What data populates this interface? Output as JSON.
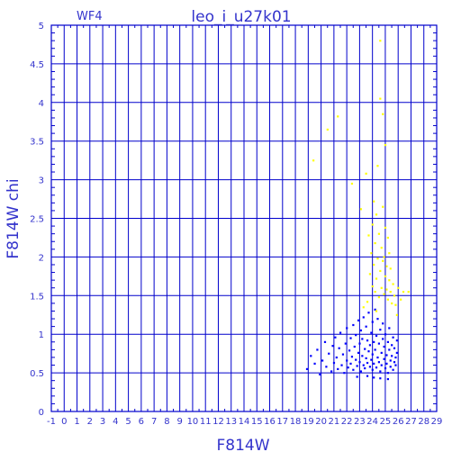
{
  "chart_data": {
    "type": "scatter",
    "title": "leo_i_u27k01",
    "subtitle": "WF4",
    "xlabel": "F814W",
    "ylabel": "F814W chi",
    "xlim": [
      -1,
      29
    ],
    "ylim": [
      0,
      5
    ],
    "x_ticks": [
      -1,
      0,
      1,
      2,
      3,
      4,
      5,
      6,
      7,
      8,
      9,
      10,
      11,
      12,
      13,
      14,
      15,
      16,
      17,
      18,
      19,
      20,
      21,
      22,
      23,
      24,
      25,
      26,
      27,
      28,
      29
    ],
    "x_tick_labels": [
      "-1",
      "0",
      "1",
      "2",
      "3",
      "4",
      "5",
      "6",
      "7",
      "8",
      "9",
      "10",
      "11",
      "12",
      "13",
      "14",
      "15",
      "16",
      "17",
      "18",
      "19",
      "20",
      "21",
      "22",
      "23",
      "24",
      "25",
      "26",
      "27",
      "28",
      "29"
    ],
    "y_ticks": [
      0,
      0.5,
      1,
      1.5,
      2,
      2.5,
      3,
      3.5,
      4,
      4.5,
      5
    ],
    "y_tick_labels": [
      "0",
      "0.5",
      "1",
      "1.5",
      "2",
      "2.5",
      "3",
      "3.5",
      "4",
      "4.5",
      "5"
    ],
    "grid": true,
    "colors": {
      "axis": "#0000cc",
      "text": "#3333cc",
      "series_blue": "#0000ff",
      "series_yellow": "#ffff00"
    },
    "series": [
      {
        "color": "#0000ff",
        "points": [
          [
            18.9,
            0.55
          ],
          [
            19.2,
            0.72
          ],
          [
            19.5,
            0.62
          ],
          [
            19.7,
            0.8
          ],
          [
            19.9,
            0.48
          ],
          [
            20.1,
            0.66
          ],
          [
            20.3,
            0.9
          ],
          [
            20.4,
            0.58
          ],
          [
            20.6,
            0.75
          ],
          [
            20.8,
            0.52
          ],
          [
            20.9,
            0.85
          ],
          [
            21.0,
            0.63
          ],
          [
            21.1,
            0.96
          ],
          [
            21.2,
            0.7
          ],
          [
            21.3,
            0.55
          ],
          [
            21.4,
            0.82
          ],
          [
            21.5,
            1.02
          ],
          [
            21.6,
            0.6
          ],
          [
            21.7,
            0.74
          ],
          [
            21.8,
            0.5
          ],
          [
            21.9,
            0.88
          ],
          [
            22.0,
            0.66
          ],
          [
            22.0,
            1.08
          ],
          [
            22.1,
            0.57
          ],
          [
            22.2,
            0.79
          ],
          [
            22.3,
            0.95
          ],
          [
            22.3,
            0.62
          ],
          [
            22.4,
            0.71
          ],
          [
            22.5,
            1.12
          ],
          [
            22.5,
            0.54
          ],
          [
            22.6,
            0.84
          ],
          [
            22.7,
            0.67
          ],
          [
            22.7,
            0.99
          ],
          [
            22.8,
            0.59
          ],
          [
            22.9,
            0.76
          ],
          [
            22.9,
            1.18
          ],
          [
            23.0,
            0.64
          ],
          [
            23.0,
            0.88
          ],
          [
            23.1,
            0.52
          ],
          [
            23.1,
            1.05
          ],
          [
            23.2,
            0.72
          ],
          [
            23.2,
            0.94
          ],
          [
            23.3,
            0.6
          ],
          [
            23.3,
            1.22
          ],
          [
            23.4,
            0.81
          ],
          [
            23.4,
            0.56
          ],
          [
            23.5,
            0.69
          ],
          [
            23.5,
            1.1
          ],
          [
            23.6,
            0.92
          ],
          [
            23.6,
            0.63
          ],
          [
            23.7,
            0.78
          ],
          [
            23.7,
            1.28
          ],
          [
            23.8,
            0.58
          ],
          [
            23.8,
            0.86
          ],
          [
            23.9,
            1.02
          ],
          [
            23.9,
            0.67
          ],
          [
            24.0,
            0.74
          ],
          [
            24.0,
            1.16
          ],
          [
            24.0,
            0.54
          ],
          [
            24.1,
            0.9
          ],
          [
            24.1,
            0.62
          ],
          [
            24.2,
            1.32
          ],
          [
            24.2,
            0.8
          ],
          [
            24.3,
            0.57
          ],
          [
            24.3,
            0.98
          ],
          [
            24.4,
            0.7
          ],
          [
            24.4,
            1.2
          ],
          [
            24.5,
            0.64
          ],
          [
            24.5,
            0.88
          ],
          [
            24.6,
            0.52
          ],
          [
            24.6,
            1.06
          ],
          [
            24.7,
            0.76
          ],
          [
            24.7,
            0.6
          ],
          [
            24.8,
            0.94
          ],
          [
            24.8,
            1.14
          ],
          [
            24.9,
            0.68
          ],
          [
            24.9,
            0.84
          ],
          [
            25.0,
            0.56
          ],
          [
            25.0,
            1.0
          ],
          [
            25.1,
            0.73
          ],
          [
            25.1,
            0.62
          ],
          [
            25.2,
            0.9
          ],
          [
            25.2,
            0.5
          ],
          [
            25.3,
            0.8
          ],
          [
            25.3,
            1.08
          ],
          [
            25.4,
            0.66
          ],
          [
            25.4,
            0.58
          ],
          [
            25.5,
            0.86
          ],
          [
            25.5,
            0.72
          ],
          [
            25.6,
            0.96
          ],
          [
            25.6,
            0.54
          ],
          [
            25.7,
            0.64
          ],
          [
            25.7,
            0.82
          ],
          [
            25.8,
            0.7
          ],
          [
            25.8,
            0.6
          ],
          [
            25.9,
            0.92
          ],
          [
            25.9,
            0.76
          ],
          [
            24.1,
            0.44
          ],
          [
            23.6,
            0.46
          ],
          [
            22.8,
            0.45
          ],
          [
            24.6,
            0.43
          ],
          [
            25.2,
            0.42
          ]
        ]
      },
      {
        "color": "#ffff00",
        "points": [
          [
            19.4,
            3.25
          ],
          [
            20.5,
            3.65
          ],
          [
            21.3,
            3.82
          ],
          [
            22.4,
            2.95
          ],
          [
            23.1,
            2.62
          ],
          [
            23.5,
            3.08
          ],
          [
            23.7,
            2.28
          ],
          [
            23.8,
            1.78
          ],
          [
            23.9,
            2.05
          ],
          [
            24.0,
            1.62
          ],
          [
            24.0,
            2.42
          ],
          [
            24.1,
            1.9
          ],
          [
            24.1,
            2.72
          ],
          [
            24.2,
            1.55
          ],
          [
            24.2,
            2.18
          ],
          [
            24.3,
            1.72
          ],
          [
            24.3,
            2.55
          ],
          [
            24.4,
            1.98
          ],
          [
            24.4,
            3.18
          ],
          [
            24.5,
            1.48
          ],
          [
            24.5,
            2.3
          ],
          [
            24.6,
            1.82
          ],
          [
            24.6,
            4.05
          ],
          [
            24.7,
            1.6
          ],
          [
            24.7,
            2.12
          ],
          [
            24.8,
            1.95
          ],
          [
            24.8,
            2.65
          ],
          [
            24.9,
            1.52
          ],
          [
            24.9,
            2.0
          ],
          [
            25.0,
            1.75
          ],
          [
            25.0,
            2.38
          ],
          [
            25.1,
            1.58
          ],
          [
            25.1,
            1.88
          ],
          [
            25.2,
            2.25
          ],
          [
            25.2,
            1.45
          ],
          [
            25.3,
            1.7
          ],
          [
            25.3,
            2.05
          ],
          [
            25.4,
            1.55
          ],
          [
            25.4,
            1.85
          ],
          [
            25.5,
            1.4
          ],
          [
            25.6,
            1.65
          ],
          [
            25.7,
            1.5
          ],
          [
            25.8,
            1.38
          ],
          [
            26.0,
            1.6
          ],
          [
            26.2,
            1.45
          ],
          [
            26.4,
            1.55
          ],
          [
            26.8,
            1.55
          ],
          [
            24.6,
            4.8
          ],
          [
            24.8,
            3.85
          ],
          [
            23.3,
            1.35
          ],
          [
            23.6,
            1.42
          ],
          [
            24.3,
            1.3
          ],
          [
            25.9,
            1.25
          ],
          [
            25.0,
            3.45
          ]
        ]
      }
    ]
  }
}
